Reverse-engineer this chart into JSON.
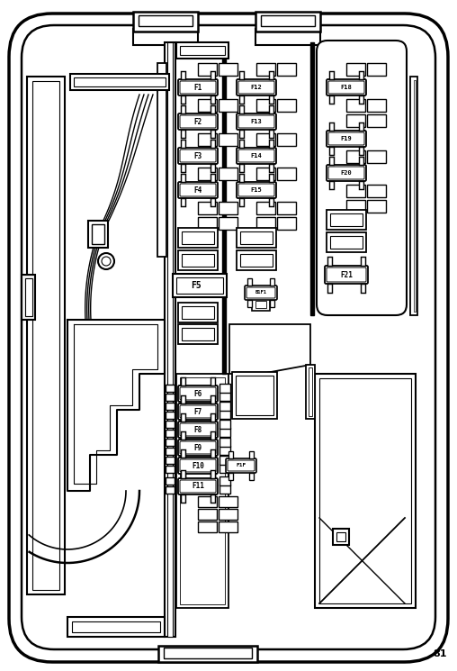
{
  "bg_color": "#ffffff",
  "line_color": "#000000",
  "page_number": "81",
  "figsize": [
    5.08,
    7.45
  ],
  "dpi": 100,
  "fuse_col1": [
    "F1",
    "F2",
    "F3",
    "F4"
  ],
  "fuse_col2": [
    "F12",
    "F13",
    "F14",
    "F15"
  ],
  "fuse_col3": [
    "F18",
    "F19",
    "F20"
  ],
  "fuse_bot": [
    "F6",
    "F7",
    "F8",
    "F9",
    "F10",
    "F11"
  ],
  "fuse_f5": "F5",
  "fuse_f21": "F21",
  "fuse_b1f1": "B1F1",
  "fuse_f1f": "F1F"
}
